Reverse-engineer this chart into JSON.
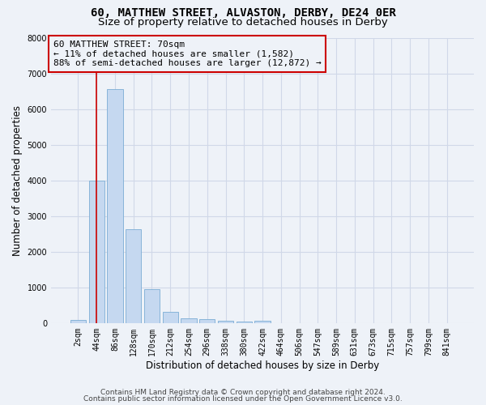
{
  "title_line1": "60, MATTHEW STREET, ALVASTON, DERBY, DE24 0ER",
  "title_line2": "Size of property relative to detached houses in Derby",
  "xlabel": "Distribution of detached houses by size in Derby",
  "ylabel": "Number of detached properties",
  "bin_labels": [
    "2sqm",
    "44sqm",
    "86sqm",
    "128sqm",
    "170sqm",
    "212sqm",
    "254sqm",
    "296sqm",
    "338sqm",
    "380sqm",
    "422sqm",
    "464sqm",
    "506sqm",
    "547sqm",
    "589sqm",
    "631sqm",
    "673sqm",
    "715sqm",
    "757sqm",
    "799sqm",
    "841sqm"
  ],
  "bar_heights": [
    80,
    4000,
    6550,
    2620,
    950,
    310,
    140,
    110,
    60,
    50,
    60,
    0,
    0,
    0,
    0,
    0,
    0,
    0,
    0,
    0,
    0
  ],
  "bar_color": "#c5d8f0",
  "bar_edgecolor": "#7badd4",
  "vline_x": 1,
  "vline_color": "#cc0000",
  "annotation_text": "60 MATTHEW STREET: 70sqm\n← 11% of detached houses are smaller (1,582)\n88% of semi-detached houses are larger (12,872) →",
  "annotation_box_color": "#cc0000",
  "ylim": [
    0,
    8000
  ],
  "yticks": [
    0,
    1000,
    2000,
    3000,
    4000,
    5000,
    6000,
    7000,
    8000
  ],
  "footer_line1": "Contains HM Land Registry data © Crown copyright and database right 2024.",
  "footer_line2": "Contains public sector information licensed under the Open Government Licence v3.0.",
  "background_color": "#eef2f8",
  "grid_color": "#d0d8e8",
  "title_fontsize": 10,
  "subtitle_fontsize": 9.5,
  "axis_label_fontsize": 8.5,
  "tick_fontsize": 7,
  "annotation_fontsize": 8,
  "footer_fontsize": 6.5
}
